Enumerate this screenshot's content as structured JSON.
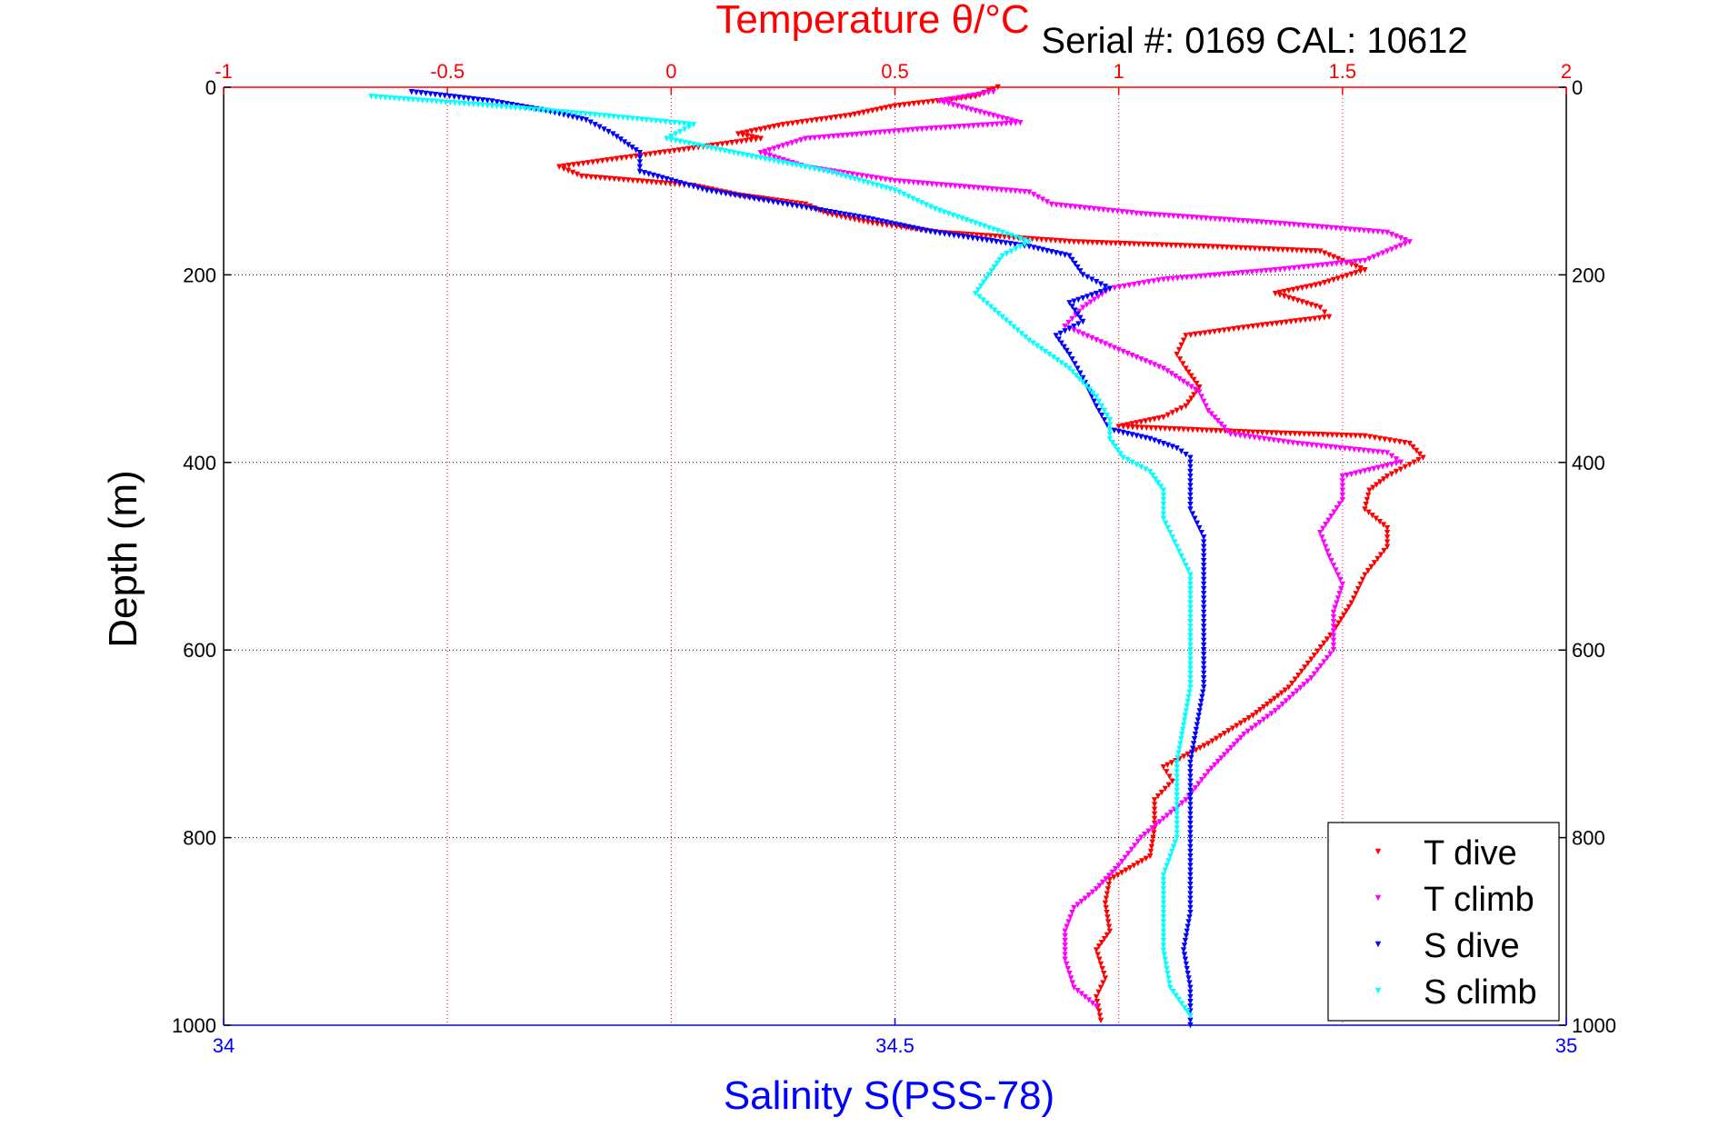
{
  "chart_data": {
    "type": "scatter",
    "title": "Temperature θ/°C",
    "annotation": "Serial #: 0169 CAL: 10612",
    "ylabel": "Depth (m)",
    "xlabel_top": "Temperature θ/°C",
    "xlabel_bottom": "Salinity S(PSS-78)",
    "ylim": [
      1000,
      0
    ],
    "y_ticks": [
      "0",
      "200",
      "400",
      "600",
      "800",
      "1000"
    ],
    "x_top": {
      "lim": [
        -1,
        2
      ],
      "ticks": [
        "-1",
        "-0.5",
        "0",
        "0.5",
        "1",
        "1.5",
        "2"
      ]
    },
    "x_bottom": {
      "lim": [
        34,
        35
      ],
      "ticks": [
        "34",
        "34.5",
        "35"
      ]
    },
    "grid": true,
    "legend_position": "bottom-right",
    "series": [
      {
        "name": "T dive",
        "axis": "temperature",
        "color": "#ff0000",
        "points": [
          [
            0.73,
            0
          ],
          [
            0.68,
            10
          ],
          [
            0.5,
            20
          ],
          [
            0.4,
            30
          ],
          [
            0.25,
            40
          ],
          [
            0.15,
            50
          ],
          [
            0.2,
            55
          ],
          [
            0.05,
            65
          ],
          [
            -0.1,
            75
          ],
          [
            -0.25,
            85
          ],
          [
            -0.2,
            95
          ],
          [
            0.05,
            105
          ],
          [
            0.15,
            115
          ],
          [
            0.3,
            125
          ],
          [
            0.35,
            135
          ],
          [
            0.45,
            145
          ],
          [
            0.6,
            155
          ],
          [
            0.9,
            165
          ],
          [
            1.2,
            170
          ],
          [
            1.45,
            175
          ],
          [
            1.5,
            185
          ],
          [
            1.55,
            195
          ],
          [
            1.45,
            210
          ],
          [
            1.35,
            220
          ],
          [
            1.45,
            235
          ],
          [
            1.47,
            245
          ],
          [
            1.3,
            255
          ],
          [
            1.15,
            265
          ],
          [
            1.13,
            285
          ],
          [
            1.15,
            300
          ],
          [
            1.18,
            320
          ],
          [
            1.15,
            340
          ],
          [
            1.1,
            352
          ],
          [
            1.0,
            362
          ],
          [
            1.3,
            368
          ],
          [
            1.55,
            372
          ],
          [
            1.65,
            380
          ],
          [
            1.68,
            395
          ],
          [
            1.6,
            415
          ],
          [
            1.56,
            430
          ],
          [
            1.55,
            450
          ],
          [
            1.6,
            470
          ],
          [
            1.6,
            490
          ],
          [
            1.55,
            520
          ],
          [
            1.52,
            550
          ],
          [
            1.48,
            580
          ],
          [
            1.43,
            610
          ],
          [
            1.38,
            640
          ],
          [
            1.3,
            670
          ],
          [
            1.2,
            700
          ],
          [
            1.1,
            725
          ],
          [
            1.12,
            740
          ],
          [
            1.08,
            760
          ],
          [
            1.08,
            790
          ],
          [
            1.07,
            820
          ],
          [
            0.98,
            845
          ],
          [
            0.97,
            870
          ],
          [
            0.98,
            900
          ],
          [
            0.95,
            920
          ],
          [
            0.97,
            950
          ],
          [
            0.95,
            970
          ],
          [
            0.96,
            995
          ]
        ]
      },
      {
        "name": "T climb",
        "axis": "temperature",
        "color": "#ff00ff",
        "points": [
          [
            0.72,
            5
          ],
          [
            0.6,
            15
          ],
          [
            0.78,
            38
          ],
          [
            0.55,
            45
          ],
          [
            0.3,
            55
          ],
          [
            0.2,
            70
          ],
          [
            0.3,
            85
          ],
          [
            0.5,
            100
          ],
          [
            0.8,
            112
          ],
          [
            0.85,
            125
          ],
          [
            1.05,
            135
          ],
          [
            1.35,
            145
          ],
          [
            1.6,
            155
          ],
          [
            1.65,
            165
          ],
          [
            1.55,
            185
          ],
          [
            1.35,
            195
          ],
          [
            1.1,
            205
          ],
          [
            0.98,
            215
          ],
          [
            0.92,
            235
          ],
          [
            0.88,
            255
          ],
          [
            1.0,
            280
          ],
          [
            1.1,
            300
          ],
          [
            1.18,
            325
          ],
          [
            1.2,
            345
          ],
          [
            1.25,
            370
          ],
          [
            1.4,
            380
          ],
          [
            1.6,
            390
          ],
          [
            1.63,
            400
          ],
          [
            1.5,
            415
          ],
          [
            1.5,
            440
          ],
          [
            1.45,
            475
          ],
          [
            1.47,
            500
          ],
          [
            1.5,
            530
          ],
          [
            1.48,
            560
          ],
          [
            1.48,
            600
          ],
          [
            1.43,
            630
          ],
          [
            1.35,
            665
          ],
          [
            1.28,
            690
          ],
          [
            1.2,
            730
          ],
          [
            1.15,
            760
          ],
          [
            1.1,
            780
          ],
          [
            1.05,
            800
          ],
          [
            1.0,
            830
          ],
          [
            0.95,
            855
          ],
          [
            0.9,
            875
          ],
          [
            0.88,
            900
          ],
          [
            0.88,
            930
          ],
          [
            0.9,
            960
          ],
          [
            0.95,
            980
          ]
        ]
      },
      {
        "name": "S dive",
        "axis": "salinity",
        "color": "#0000ff",
        "points": [
          [
            34.14,
            5
          ],
          [
            34.2,
            15
          ],
          [
            34.24,
            25
          ],
          [
            34.27,
            35
          ],
          [
            34.29,
            50
          ],
          [
            34.31,
            70
          ],
          [
            34.31,
            90
          ],
          [
            34.36,
            110
          ],
          [
            34.42,
            125
          ],
          [
            34.48,
            140
          ],
          [
            34.53,
            155
          ],
          [
            34.6,
            170
          ],
          [
            34.63,
            180
          ],
          [
            34.64,
            200
          ],
          [
            34.66,
            215
          ],
          [
            34.63,
            230
          ],
          [
            34.64,
            250
          ],
          [
            34.62,
            265
          ],
          [
            34.63,
            285
          ],
          [
            34.64,
            310
          ],
          [
            34.65,
            340
          ],
          [
            34.66,
            365
          ],
          [
            34.69,
            375
          ],
          [
            34.71,
            385
          ],
          [
            34.72,
            395
          ],
          [
            34.72,
            420
          ],
          [
            34.72,
            450
          ],
          [
            34.73,
            480
          ],
          [
            34.73,
            520
          ],
          [
            34.73,
            560
          ],
          [
            34.73,
            600
          ],
          [
            34.73,
            640
          ],
          [
            34.725,
            680
          ],
          [
            34.72,
            720
          ],
          [
            34.72,
            760
          ],
          [
            34.72,
            800
          ],
          [
            34.72,
            840
          ],
          [
            34.72,
            880
          ],
          [
            34.715,
            920
          ],
          [
            34.72,
            960
          ],
          [
            34.72,
            1000
          ]
        ]
      },
      {
        "name": "S climb",
        "axis": "salinity",
        "color": "#00ffff",
        "points": [
          [
            34.11,
            10
          ],
          [
            34.2,
            20
          ],
          [
            34.28,
            30
          ],
          [
            34.35,
            40
          ],
          [
            34.33,
            55
          ],
          [
            34.38,
            70
          ],
          [
            34.45,
            90
          ],
          [
            34.5,
            110
          ],
          [
            34.53,
            130
          ],
          [
            34.57,
            150
          ],
          [
            34.6,
            165
          ],
          [
            34.58,
            180
          ],
          [
            34.57,
            200
          ],
          [
            34.56,
            220
          ],
          [
            34.58,
            245
          ],
          [
            34.6,
            270
          ],
          [
            34.63,
            300
          ],
          [
            34.65,
            330
          ],
          [
            34.66,
            355
          ],
          [
            34.66,
            375
          ],
          [
            34.67,
            395
          ],
          [
            34.69,
            410
          ],
          [
            34.7,
            430
          ],
          [
            34.7,
            460
          ],
          [
            34.71,
            490
          ],
          [
            34.72,
            520
          ],
          [
            34.72,
            560
          ],
          [
            34.72,
            600
          ],
          [
            34.72,
            640
          ],
          [
            34.715,
            680
          ],
          [
            34.71,
            720
          ],
          [
            34.71,
            760
          ],
          [
            34.71,
            800
          ],
          [
            34.7,
            840
          ],
          [
            34.7,
            880
          ],
          [
            34.7,
            920
          ],
          [
            34.705,
            960
          ],
          [
            34.72,
            990
          ]
        ]
      }
    ]
  }
}
